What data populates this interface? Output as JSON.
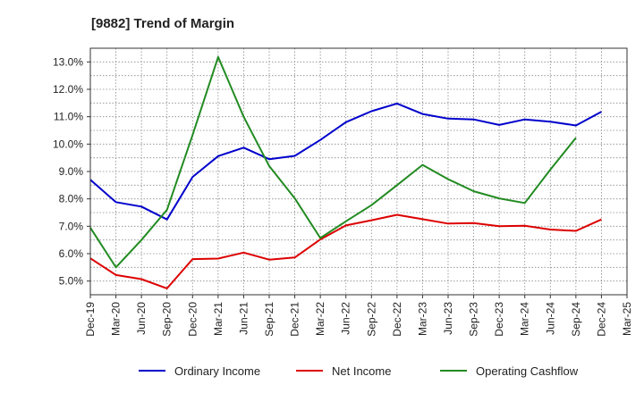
{
  "chart_data": {
    "type": "line",
    "title": "[9882]  Trend of Margin",
    "xlabel": "",
    "ylabel": "",
    "categories": [
      "Dec-19",
      "Mar-20",
      "Jun-20",
      "Sep-20",
      "Dec-20",
      "Mar-21",
      "Jun-21",
      "Sep-21",
      "Dec-21",
      "Mar-22",
      "Jun-22",
      "Sep-22",
      "Dec-22",
      "Mar-23",
      "Jun-23",
      "Sep-23",
      "Dec-23",
      "Mar-24",
      "Jun-24",
      "Sep-24",
      "Dec-24",
      "Mar-25"
    ],
    "ylim": [
      4.5,
      13.5
    ],
    "yticks": [
      "5.0%",
      "6.0%",
      "7.0%",
      "8.0%",
      "9.0%",
      "10.0%",
      "11.0%",
      "12.0%",
      "13.0%"
    ],
    "ytick_values": [
      5,
      6,
      7,
      8,
      9,
      10,
      11,
      12,
      13
    ],
    "grid": true,
    "legend_position": "bottom",
    "series": [
      {
        "name": "Ordinary Income",
        "color": "#0000cc",
        "values": [
          8.7,
          7.88,
          7.72,
          7.25,
          8.8,
          9.56,
          9.87,
          9.45,
          9.57,
          10.15,
          10.8,
          11.2,
          11.48,
          11.1,
          10.93,
          10.9,
          10.7,
          10.9,
          10.82,
          10.68,
          11.18,
          null
        ]
      },
      {
        "name": "Net Income",
        "color": "#dd0000",
        "values": [
          5.83,
          5.22,
          5.07,
          4.73,
          5.8,
          5.82,
          6.04,
          5.78,
          5.86,
          6.52,
          7.03,
          7.22,
          7.42,
          7.26,
          7.1,
          7.12,
          7.0,
          7.02,
          6.88,
          6.83,
          7.25,
          null
        ]
      },
      {
        "name": "Operating Cashflow",
        "color": "#228b22",
        "values": [
          6.95,
          5.5,
          6.5,
          7.6,
          10.33,
          13.18,
          11.0,
          9.2,
          8.02,
          6.57,
          7.18,
          7.77,
          8.5,
          9.24,
          8.72,
          8.28,
          8.02,
          7.85,
          9.07,
          10.23,
          null,
          null
        ]
      }
    ]
  }
}
